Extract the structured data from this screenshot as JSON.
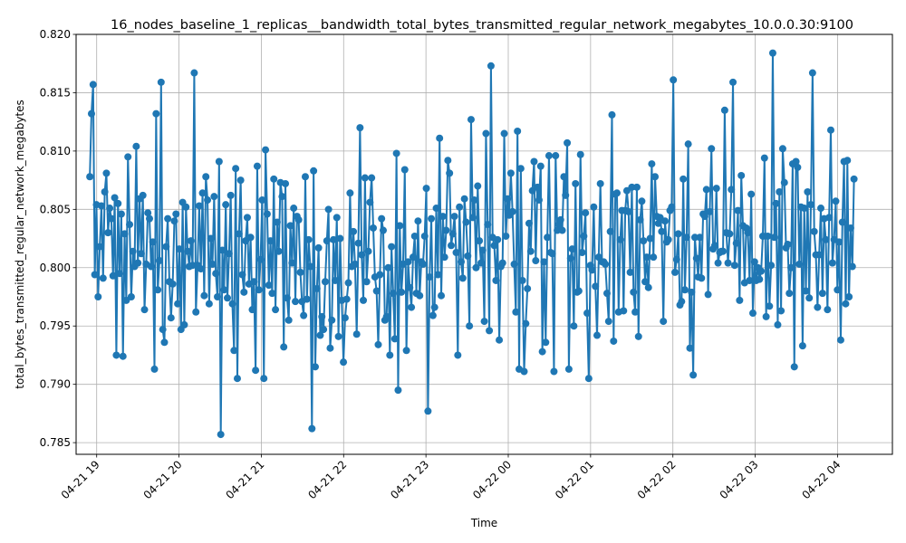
{
  "chart_data": {
    "type": "line",
    "title": "16_nodes_baseline_1_replicas__bandwidth_total_bytes_transmitted_regular_network_megabytes_10.0.0.30:9100",
    "xlabel": "Time",
    "ylabel": "total_bytes_transmitted_regular_network_megabytes",
    "x_ticks": [
      "04-21 19",
      "04-21 20",
      "04-21 21",
      "04-21 22",
      "04-21 23",
      "04-22 00",
      "04-22 01",
      "04-22 02",
      "04-22 03",
      "04-22 04"
    ],
    "x_range": [
      "04-21 18:45",
      "04-22 04:40"
    ],
    "y_ticks": [
      "0.785",
      "0.790",
      "0.795",
      "0.800",
      "0.805",
      "0.810",
      "0.815",
      "0.820"
    ],
    "ylim": [
      0.784,
      0.82
    ],
    "grid": true,
    "legend": "none",
    "color": "#1f77b4",
    "series": [
      {
        "start": "04-21 18:55",
        "end": "04-22 04:12",
        "interval_seconds": 60,
        "values": [
          0.8078,
          0.8132,
          0.8157,
          0.7994,
          0.8054,
          0.7975,
          0.8018,
          0.8053,
          0.7991,
          0.8065,
          0.8081,
          0.803,
          0.8051,
          0.8042,
          0.7993,
          0.806,
          0.7925,
          0.8055,
          0.7995,
          0.8046,
          0.7924,
          0.8029,
          0.7972,
          0.8095,
          0.8037,
          0.7975,
          0.8014,
          0.8001,
          0.8104,
          0.8004,
          0.8059,
          0.8012,
          0.8062,
          0.7964,
          0.8003,
          0.8047,
          0.8042,
          0.8001,
          0.8022,
          0.7913,
          0.8132,
          0.7981,
          0.8006,
          0.8159,
          0.7947,
          0.7936,
          0.8018,
          0.8042,
          0.7988,
          0.7957,
          0.7986,
          0.804,
          0.8046,
          0.7969,
          0.8016,
          0.7947,
          0.8056,
          0.7951,
          0.8052,
          0.8014,
          0.8001,
          0.8023,
          0.8002,
          0.8167,
          0.7962,
          0.8002,
          0.8053,
          0.7999,
          0.8064,
          0.7976,
          0.8078,
          0.8058,
          0.7969,
          0.8025,
          0.8003,
          0.8061,
          0.7995,
          0.7975,
          0.8091,
          0.7857,
          0.8015,
          0.7981,
          0.8054,
          0.7974,
          0.8012,
          0.8062,
          0.7969,
          0.7929,
          0.8085,
          0.7905,
          0.8029,
          0.8075,
          0.7994,
          0.7979,
          0.8023,
          0.8043,
          0.7986,
          0.8026,
          0.7964,
          0.7988,
          0.7912,
          0.8087,
          0.7981,
          0.8007,
          0.8058,
          0.7905,
          0.8101,
          0.8046,
          0.7985,
          0.8023,
          0.7978,
          0.8076,
          0.7964,
          0.8039,
          0.8014,
          0.8073,
          0.8061,
          0.7932,
          0.8072,
          0.7974,
          0.7955,
          0.8036,
          0.8004,
          0.8051,
          0.7971,
          0.8044,
          0.8041,
          0.7996,
          0.7971,
          0.7959,
          0.8078,
          0.7973,
          0.8024,
          0.8001,
          0.7862,
          0.8083,
          0.7915,
          0.7982,
          0.8017,
          0.7942,
          0.7958,
          0.7947,
          0.7988,
          0.8023,
          0.805,
          0.7931,
          0.7955,
          0.8024,
          0.7989,
          0.8043,
          0.7941,
          0.8025,
          0.7972,
          0.7919,
          0.7957,
          0.7973,
          0.7987,
          0.8064,
          0.8001,
          0.8031,
          0.8003,
          0.7943,
          0.8021,
          0.812,
          0.8011,
          0.7972,
          0.8077,
          0.7988,
          0.8014,
          0.8056,
          0.8077,
          0.8034,
          0.7992,
          0.798,
          0.7934,
          0.7994,
          0.8042,
          0.8032,
          0.7955,
          0.7958,
          0.8,
          0.7925,
          0.8018,
          0.7978,
          0.7939,
          0.8098,
          0.7895,
          0.8036,
          0.7979,
          0.8003,
          0.8084,
          0.7929,
          0.8005,
          0.7983,
          0.7966,
          0.8009,
          0.8027,
          0.7978,
          0.804,
          0.7976,
          0.8005,
          0.8003,
          0.8027,
          0.8068,
          0.7877,
          0.7992,
          0.8042,
          0.7959,
          0.7966,
          0.8051,
          0.7994,
          0.8111,
          0.7976,
          0.8044,
          0.8009,
          0.8032,
          0.8092,
          0.8081,
          0.8019,
          0.8029,
          0.8044,
          0.8013,
          0.7925,
          0.8052,
          0.8005,
          0.7991,
          0.8059,
          0.8039,
          0.801,
          0.795,
          0.8127,
          0.8043,
          0.8058,
          0.8,
          0.807,
          0.8023,
          0.8004,
          0.8015,
          0.7954,
          0.8115,
          0.8037,
          0.7946,
          0.8173,
          0.8026,
          0.8019,
          0.7989,
          0.8024,
          0.7938,
          0.8001,
          0.8004,
          0.8115,
          0.8027,
          0.8059,
          0.8045,
          0.8081,
          0.8048,
          0.8003,
          0.7962,
          0.8117,
          0.7913,
          0.8085,
          0.7989,
          0.7911,
          0.7952,
          0.7982,
          0.8038,
          0.8014,
          0.8066,
          0.8091,
          0.8006,
          0.8069,
          0.8058,
          0.8087,
          0.7928,
          0.8005,
          0.7936,
          0.8026,
          0.8096,
          0.8013,
          0.8012,
          0.7911,
          0.8096,
          0.8032,
          0.8037,
          0.8041,
          0.8032,
          0.8078,
          0.8062,
          0.8107,
          0.7913,
          0.8008,
          0.8016,
          0.795,
          0.8072,
          0.7979,
          0.798,
          0.8097,
          0.8013,
          0.8027,
          0.8047,
          0.7961,
          0.7905,
          0.8002,
          0.7998,
          0.8052,
          0.7984,
          0.7942,
          0.8009,
          0.8072,
          0.8005,
          0.8005,
          0.8003,
          0.7978,
          0.7954,
          0.8031,
          0.8131,
          0.7937,
          0.8063,
          0.8064,
          0.7962,
          0.8024,
          0.8049,
          0.7963,
          0.8049,
          0.8066,
          0.8048,
          0.7996,
          0.8069,
          0.7979,
          0.7962,
          0.8069,
          0.7941,
          0.8041,
          0.8057,
          0.8023,
          0.7988,
          0.8009,
          0.7983,
          0.8025,
          0.8089,
          0.8009,
          0.8078,
          0.8044,
          0.8038,
          0.8043,
          0.8031,
          0.7954,
          0.804,
          0.8022,
          0.8024,
          0.8049,
          0.8052,
          0.8161,
          0.7996,
          0.8007,
          0.8029,
          0.7968,
          0.7971,
          0.8076,
          0.7981,
          0.8026,
          0.8106,
          0.7931,
          0.7979,
          0.7908,
          0.8026,
          0.8008,
          0.7992,
          0.8026,
          0.7991,
          0.8046,
          0.8044,
          0.8067,
          0.7977,
          0.8048,
          0.8102,
          0.8016,
          0.8019,
          0.8068,
          0.8004,
          0.8013,
          0.8014,
          0.8014,
          0.8135,
          0.803,
          0.8004,
          0.8029,
          0.8067,
          0.8159,
          0.8002,
          0.8021,
          0.8049,
          0.7972,
          0.8079,
          0.8036,
          0.7987,
          0.8034,
          0.803,
          0.7989,
          0.8063,
          0.7961,
          0.8005,
          0.7989,
          0.8,
          0.799,
          0.7997,
          0.8027,
          0.8094,
          0.7958,
          0.8027,
          0.7967,
          0.8002,
          0.8184,
          0.8026,
          0.8055,
          0.7951,
          0.8065,
          0.7963,
          0.8102,
          0.8073,
          0.8017,
          0.802,
          0.7978,
          0.8,
          0.8089,
          0.7915,
          0.8091,
          0.8086,
          0.8003,
          0.8052,
          0.7933,
          0.8051,
          0.798,
          0.8065,
          0.7974,
          0.8054,
          0.8167,
          0.8031,
          0.8011,
          0.7966,
          0.8011,
          0.8051,
          0.7978,
          0.8042,
          0.8024,
          0.7964,
          0.8043,
          0.8118,
          0.8004,
          0.8024,
          0.8057,
          0.7981,
          0.8022,
          0.7938,
          0.8039,
          0.8091,
          0.7969,
          0.8092,
          0.7975,
          0.8034,
          0.8001,
          0.8076
        ]
      }
    ]
  }
}
